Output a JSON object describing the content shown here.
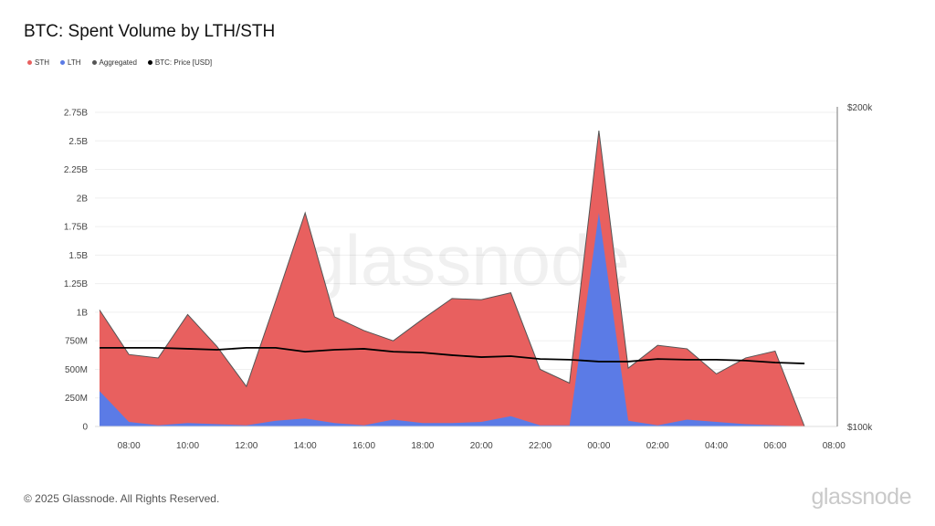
{
  "title": "BTC: Spent Volume by LTH/STH",
  "legend": [
    {
      "label": "STH",
      "color": "#e8605f"
    },
    {
      "label": "LTH",
      "color": "#5b7be6"
    },
    {
      "label": "Aggregated",
      "color": "#555555"
    },
    {
      "label": "BTC: Price [USD]",
      "color": "#000000"
    }
  ],
  "footer": "© 2025 Glassnode. All Rights Reserved.",
  "logo": "glassnode",
  "watermark": "glassnode",
  "chart_data": {
    "type": "area",
    "title": "BTC: Spent Volume by LTH/STH",
    "x": [
      "07:00",
      "08:00",
      "09:00",
      "10:00",
      "11:00",
      "12:00",
      "13:00",
      "14:00",
      "15:00",
      "16:00",
      "17:00",
      "18:00",
      "19:00",
      "20:00",
      "21:00",
      "22:00",
      "23:00",
      "00:00",
      "01:00",
      "02:00",
      "03:00",
      "04:00",
      "05:00",
      "06:00",
      "07:00"
    ],
    "x_ticks": [
      "08:00",
      "10:00",
      "12:00",
      "14:00",
      "16:00",
      "18:00",
      "20:00",
      "22:00",
      "00:00",
      "02:00",
      "04:00",
      "06:00",
      "08:00"
    ],
    "y_left_ticks": [
      "0",
      "250M",
      "500M",
      "750M",
      "1B",
      "1.25B",
      "1.5B",
      "1.75B",
      "2B",
      "2.25B",
      "2.5B",
      "2.75B"
    ],
    "y_left_range": [
      0,
      2.75
    ],
    "y_left_unit": "B",
    "y_right_ticks": [
      "$100k",
      "$200k"
    ],
    "y_right_range": [
      100000,
      200000
    ],
    "grid": true,
    "legend_position": "top-left",
    "stacked": true,
    "series": [
      {
        "name": "LTH",
        "color": "#5b7be6",
        "values": [
          0.31,
          0.04,
          0.01,
          0.03,
          0.02,
          0.01,
          0.05,
          0.07,
          0.03,
          0.01,
          0.06,
          0.03,
          0.03,
          0.04,
          0.09,
          0.01,
          0.01,
          1.87,
          0.05,
          0.01,
          0.06,
          0.04,
          0.02,
          0.01,
          0
        ]
      },
      {
        "name": "STH",
        "color": "#e8605f",
        "values": [
          0.71,
          0.59,
          0.59,
          0.95,
          0.68,
          0.34,
          1.05,
          1.8,
          0.93,
          0.83,
          0.69,
          0.91,
          1.09,
          1.07,
          1.08,
          0.49,
          0.37,
          0.72,
          0.46,
          0.7,
          0.62,
          0.42,
          0.58,
          0.65,
          0
        ]
      },
      {
        "name": "Aggregated",
        "color": "#555555",
        "values": [
          1.02,
          0.63,
          0.6,
          0.98,
          0.7,
          0.35,
          1.1,
          1.87,
          0.96,
          0.84,
          0.75,
          0.94,
          1.12,
          1.11,
          1.17,
          0.5,
          0.38,
          2.59,
          0.51,
          0.71,
          0.68,
          0.46,
          0.6,
          0.66,
          0
        ]
      },
      {
        "name": "BTC: Price [USD]",
        "color": "#000000",
        "axis": "right",
        "values": [
          124600,
          124600,
          124600,
          124300,
          124000,
          124600,
          124600,
          123400,
          124000,
          124300,
          123400,
          123100,
          122300,
          121700,
          122000,
          121100,
          120900,
          120300,
          120300,
          121100,
          120900,
          120900,
          120600,
          120000,
          119700
        ]
      }
    ]
  }
}
